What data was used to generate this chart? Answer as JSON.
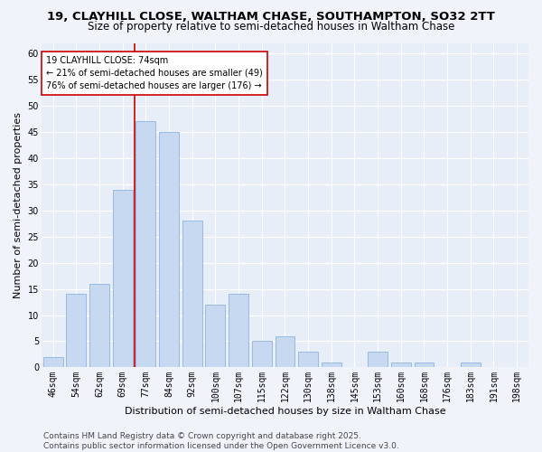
{
  "title": "19, CLAYHILL CLOSE, WALTHAM CHASE, SOUTHAMPTON, SO32 2TT",
  "subtitle": "Size of property relative to semi-detached houses in Waltham Chase",
  "xlabel": "Distribution of semi-detached houses by size in Waltham Chase",
  "ylabel": "Number of semi-detached properties",
  "categories": [
    "46sqm",
    "54sqm",
    "62sqm",
    "69sqm",
    "77sqm",
    "84sqm",
    "92sqm",
    "100sqm",
    "107sqm",
    "115sqm",
    "122sqm",
    "130sqm",
    "138sqm",
    "145sqm",
    "153sqm",
    "160sqm",
    "168sqm",
    "176sqm",
    "183sqm",
    "191sqm",
    "198sqm"
  ],
  "values": [
    2,
    14,
    16,
    34,
    47,
    45,
    28,
    12,
    14,
    5,
    6,
    3,
    1,
    0,
    3,
    1,
    1,
    0,
    1,
    0,
    0
  ],
  "bar_color": "#c6d9f0",
  "bar_edge_color": "#8db3e2",
  "red_line_x": 3.5,
  "annotation_title": "19 CLAYHILL CLOSE: 74sqm",
  "annotation_line1": "← 21% of semi-detached houses are smaller (49)",
  "annotation_line2": "76% of semi-detached houses are larger (176) →",
  "annotation_box_color": "#ffffff",
  "annotation_box_edge": "#cc0000",
  "red_line_color": "#cc0000",
  "background_color": "#f0f4fa",
  "plot_bg_color": "#e8eef8",
  "footer": "Contains HM Land Registry data © Crown copyright and database right 2025.\nContains public sector information licensed under the Open Government Licence v3.0.",
  "ylim": [
    0,
    62
  ],
  "yticks": [
    0,
    5,
    10,
    15,
    20,
    25,
    30,
    35,
    40,
    45,
    50,
    55,
    60
  ],
  "title_fontsize": 9.5,
  "subtitle_fontsize": 8.5,
  "xlabel_fontsize": 8,
  "ylabel_fontsize": 8,
  "tick_fontsize": 7,
  "annotation_fontsize": 7,
  "footer_fontsize": 6.5
}
